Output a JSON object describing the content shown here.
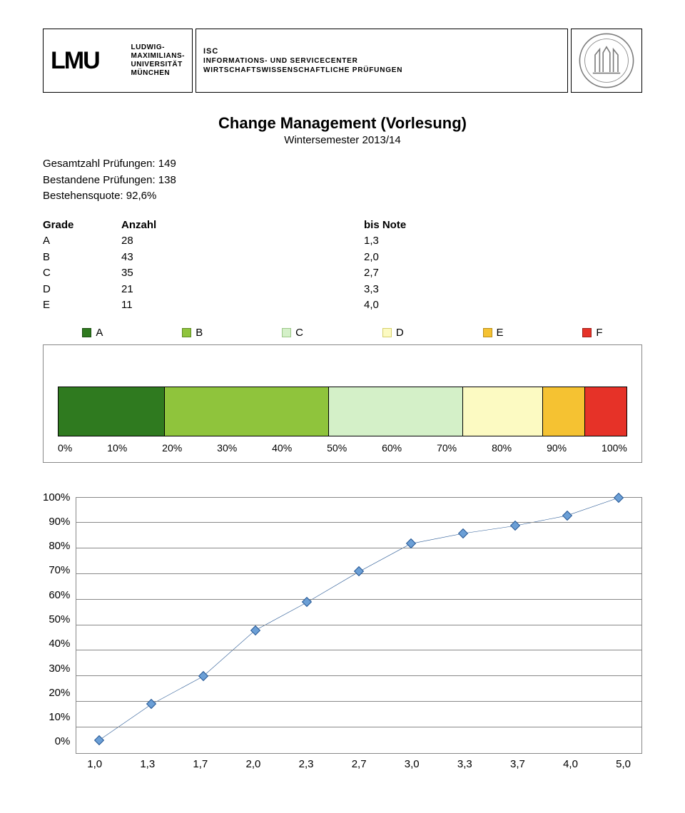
{
  "header": {
    "lmu_mark": "LMU",
    "lmu_lines": [
      "LUDWIG-",
      "MAXIMILIANS-",
      "UNIVERSITÄT",
      "MÜNCHEN"
    ],
    "isc_lines": [
      "ISC",
      "INFORMATIONS- UND SERVICECENTER",
      "WIRTSCHAFTSWISSENSCHAFTLICHE PRÜFUNGEN"
    ]
  },
  "title": "Change Management (Vorlesung)",
  "subtitle": "Wintersemester 2013/14",
  "stats": [
    "Gesamtzahl Prüfungen: 149",
    "Bestandene Prüfungen: 138",
    "Bestehensquote: 92,6%"
  ],
  "grade_headers": [
    "Grade",
    "Anzahl",
    "bis Note"
  ],
  "grade_rows": [
    {
      "g": "A",
      "n": "28",
      "note": "1,3"
    },
    {
      "g": "B",
      "n": "43",
      "note": "2,0"
    },
    {
      "g": "C",
      "n": "35",
      "note": "2,7"
    },
    {
      "g": "D",
      "n": "21",
      "note": "3,3"
    },
    {
      "g": "E",
      "n": "11",
      "note": "4,0"
    }
  ],
  "series": [
    {
      "label": "A",
      "fill": "#2f7a1f",
      "border": "#1a4d10",
      "pct": 18.8
    },
    {
      "label": "B",
      "fill": "#8fc43c",
      "border": "#5e8a22",
      "pct": 28.9
    },
    {
      "label": "C",
      "fill": "#d4f0c8",
      "border": "#9cc788",
      "pct": 23.5
    },
    {
      "label": "D",
      "fill": "#fcfac2",
      "border": "#d6d06a",
      "pct": 14.1
    },
    {
      "label": "E",
      "fill": "#f5c232",
      "border": "#b88e1a",
      "pct": 7.4
    },
    {
      "label": "F",
      "fill": "#e63228",
      "border": "#9e1f18",
      "pct": 7.4
    }
  ],
  "stack_ticks": [
    "0%",
    "10%",
    "20%",
    "30%",
    "40%",
    "50%",
    "60%",
    "70%",
    "80%",
    "90%",
    "100%"
  ],
  "line_chart": {
    "y_ticks": [
      "0%",
      "10%",
      "20%",
      "30%",
      "40%",
      "50%",
      "60%",
      "70%",
      "80%",
      "90%",
      "100%"
    ],
    "x_labels": [
      "1,0",
      "1,3",
      "1,7",
      "2,0",
      "2,3",
      "2,7",
      "3,0",
      "3,3",
      "3,7",
      "4,0",
      "5,0"
    ],
    "y_values_pct": [
      5,
      19,
      30,
      48,
      59,
      71,
      82,
      86,
      89,
      93,
      100
    ],
    "marker_fill": "#6b9fd6",
    "marker_border": "#2a5a95",
    "line_color": "#2a5a95",
    "grid_color": "#888888"
  }
}
